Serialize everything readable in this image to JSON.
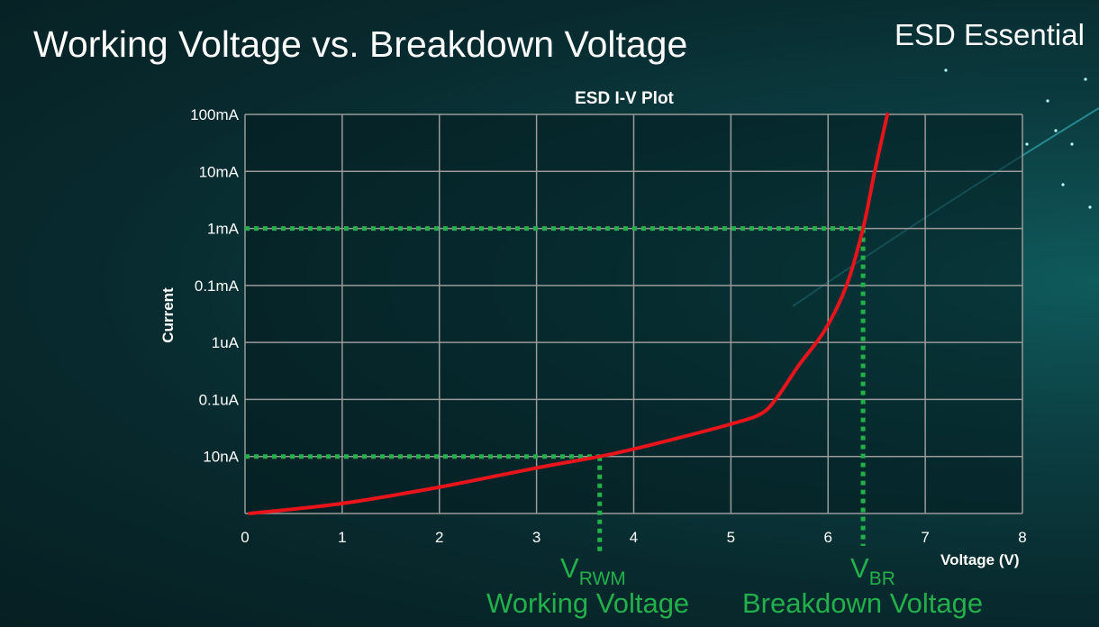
{
  "slide": {
    "title": "Working Voltage vs. Breakdown Voltage",
    "brand": "ESD Essential"
  },
  "chart_data": {
    "type": "line",
    "title": "ESD I-V Plot",
    "xlabel": "Voltage (V)",
    "ylabel": "Current",
    "xlim": [
      0,
      8
    ],
    "x_ticks": [
      "0",
      "1",
      "2",
      "3",
      "4",
      "5",
      "6",
      "7",
      "8"
    ],
    "y_scale": "log",
    "y_ticks": [
      {
        "label": "",
        "value": 1e-09
      },
      {
        "label": "10nA",
        "value": 1e-08
      },
      {
        "label": "0.1uA",
        "value": 1e-07
      },
      {
        "label": "1uA",
        "value": 1e-06
      },
      {
        "label": "0.1mA",
        "value": 0.0001
      },
      {
        "label": "1mA",
        "value": 0.001
      },
      {
        "label": "10mA",
        "value": 0.01
      },
      {
        "label": "100mA",
        "value": 0.1
      }
    ],
    "grid": true,
    "series": [
      {
        "color": "#e8141c",
        "points": [
          [
            0.05,
            1e-09
          ],
          [
            1.0,
            1.5e-09
          ],
          [
            2.0,
            2.9e-09
          ],
          [
            3.0,
            6.3e-09
          ],
          [
            3.65,
            1e-08
          ],
          [
            4.0,
            1.35e-08
          ],
          [
            4.5,
            2.2e-08
          ],
          [
            5.0,
            3.7e-08
          ],
          [
            5.3,
            5.5e-08
          ],
          [
            5.46,
            1e-07
          ],
          [
            5.7,
            4e-07
          ],
          [
            5.97,
            2.8e-06
          ],
          [
            6.19,
            0.0001
          ],
          [
            6.36,
            0.001
          ],
          [
            6.48,
            0.01
          ],
          [
            6.61,
            0.1
          ]
        ]
      }
    ],
    "annotations": {
      "color": "#22b04a",
      "rwm": {
        "voltage": 3.65,
        "current": 1e-08,
        "symbol": "V",
        "subscript": "RWM",
        "label": "Working Voltage"
      },
      "br": {
        "voltage": 6.36,
        "current": 0.001,
        "symbol": "V",
        "subscript": "BR",
        "label": "Breakdown Voltage"
      }
    }
  }
}
